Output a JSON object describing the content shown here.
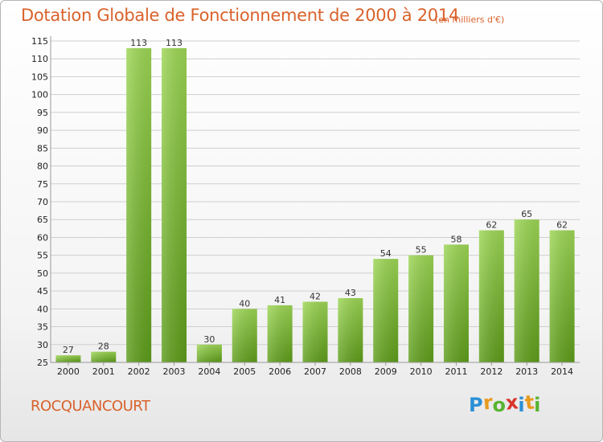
{
  "title": "Dotation Globale de Fonctionnement de 2000 à 2014",
  "subtitle": "(en milliers d'€)",
  "town": "ROCQUANCOURT",
  "logo": {
    "letters": [
      "P",
      "r",
      "o",
      "x",
      "i",
      "t",
      "i"
    ],
    "colors": [
      "#2a8fd6",
      "#e89a1c",
      "#58b431",
      "#d8342b",
      "#2a8fd6",
      "#e89a1c",
      "#58b431"
    ]
  },
  "chart_data": {
    "type": "bar",
    "categories": [
      "2000",
      "2001",
      "2002",
      "2003",
      "2004",
      "2005",
      "2006",
      "2007",
      "2008",
      "2009",
      "2010",
      "2011",
      "2012",
      "2013",
      "2014"
    ],
    "values": [
      27,
      28,
      113,
      113,
      30,
      40,
      41,
      42,
      43,
      54,
      55,
      58,
      62,
      65,
      62
    ],
    "ylim": [
      25,
      115
    ],
    "yticks": [
      25,
      30,
      35,
      40,
      45,
      50,
      55,
      60,
      65,
      70,
      75,
      80,
      85,
      90,
      95,
      100,
      105,
      110,
      115
    ],
    "grid": true,
    "bar_color": "#7dc13a"
  }
}
